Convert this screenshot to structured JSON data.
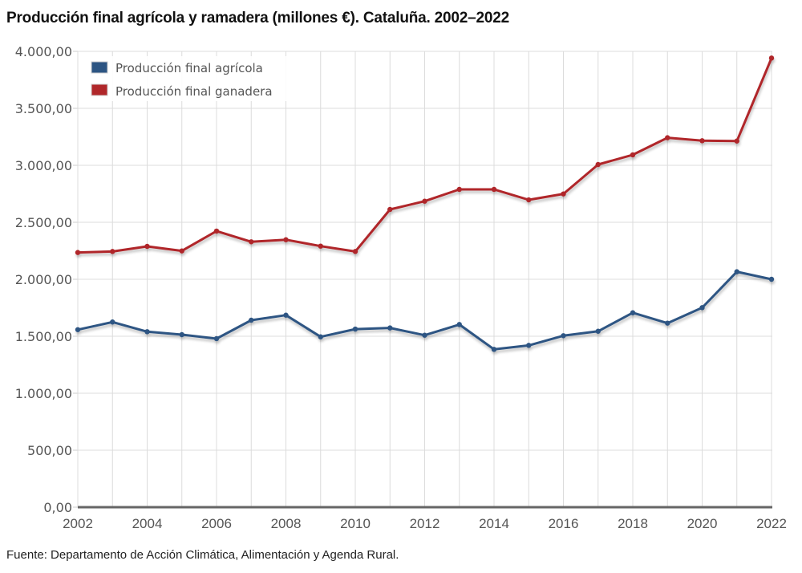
{
  "chart_data": {
    "type": "line",
    "title": "Producción final agrícola y ramadera (millones €). Cataluña. 2002–2022",
    "xlabel": "",
    "ylabel": "",
    "x": [
      2002,
      2003,
      2004,
      2005,
      2006,
      2007,
      2008,
      2009,
      2010,
      2011,
      2012,
      2013,
      2014,
      2015,
      2016,
      2017,
      2018,
      2019,
      2020,
      2021,
      2022
    ],
    "xlim": [
      2002,
      2022
    ],
    "ylim": [
      0,
      4000
    ],
    "x_tick_labels": [
      "2002",
      "2004",
      "2006",
      "2008",
      "2010",
      "2012",
      "2014",
      "2016",
      "2018",
      "2020",
      "2022"
    ],
    "y_ticks": [
      0,
      500,
      1000,
      1500,
      2000,
      2500,
      3000,
      3500,
      4000
    ],
    "y_tick_labels": [
      "0,00",
      "500,00",
      "1.000,00",
      "1.500,00",
      "2.000,00",
      "2.500,00",
      "3.000,00",
      "3.500,00",
      "4.000,00"
    ],
    "grid": true,
    "legend_position": "top-left",
    "series": [
      {
        "name": "Producción final agrícola",
        "color": "#2d5583",
        "values": [
          1558,
          1625,
          1540,
          1514,
          1479,
          1641,
          1685,
          1495,
          1563,
          1573,
          1509,
          1603,
          1385,
          1420,
          1505,
          1544,
          1706,
          1615,
          1751,
          2066,
          2000
        ]
      },
      {
        "name": "Producción final ganadera",
        "color": "#b0272a",
        "values": [
          2235,
          2244,
          2289,
          2249,
          2423,
          2329,
          2347,
          2291,
          2244,
          2613,
          2685,
          2789,
          2789,
          2697,
          2749,
          3007,
          3092,
          3242,
          3216,
          3213,
          3941
        ]
      }
    ]
  },
  "source": "Fuente: Departamento de Acción Climática, Alimentación y Agenda Rural."
}
